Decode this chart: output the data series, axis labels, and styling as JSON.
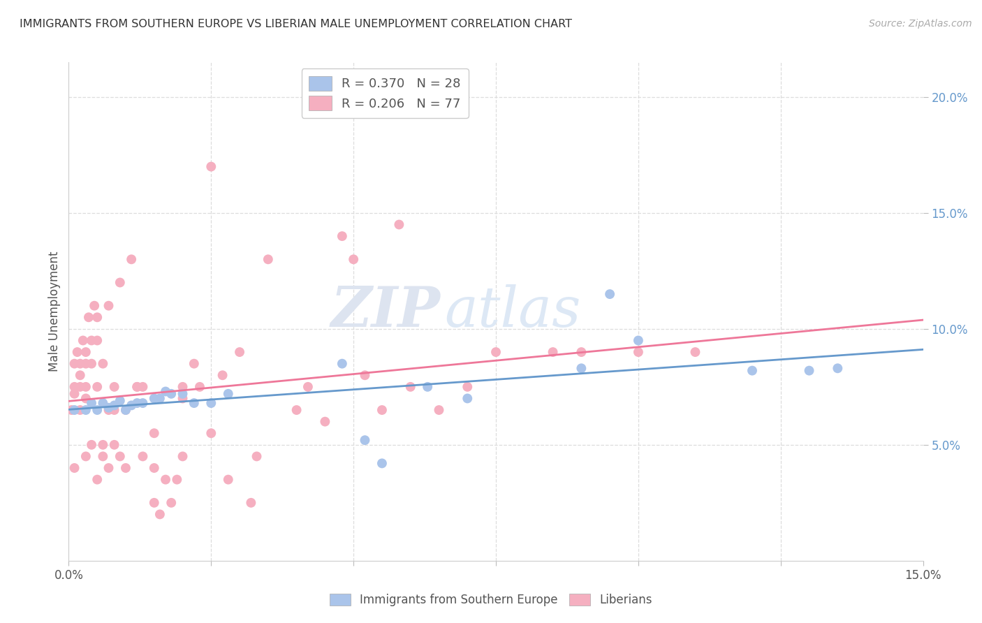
{
  "title": "IMMIGRANTS FROM SOUTHERN EUROPE VS LIBERIAN MALE UNEMPLOYMENT CORRELATION CHART",
  "source": "Source: ZipAtlas.com",
  "ylabel": "Male Unemployment",
  "xlim": [
    0.0,
    0.15
  ],
  "ylim": [
    0.0,
    0.215
  ],
  "yticks": [
    0.05,
    0.1,
    0.15,
    0.2
  ],
  "ytick_labels": [
    "5.0%",
    "10.0%",
    "15.0%",
    "20.0%"
  ],
  "blue_color": "#aac4ea",
  "pink_color": "#f5afc0",
  "blue_line_color": "#6699cc",
  "pink_line_color": "#ee7799",
  "legend_label_blue": "Immigrants from Southern Europe",
  "legend_label_pink": "Liberians",
  "watermark_zip": "ZIP",
  "watermark_atlas": "atlas",
  "blue_scatter_x": [
    0.001,
    0.003,
    0.004,
    0.005,
    0.006,
    0.007,
    0.008,
    0.009,
    0.01,
    0.011,
    0.012,
    0.013,
    0.015,
    0.016,
    0.017,
    0.018,
    0.02,
    0.022,
    0.025,
    0.028,
    0.048,
    0.052,
    0.055,
    0.063,
    0.07,
    0.09,
    0.095,
    0.1,
    0.12,
    0.13,
    0.135
  ],
  "blue_scatter_y": [
    0.065,
    0.065,
    0.068,
    0.065,
    0.068,
    0.066,
    0.067,
    0.069,
    0.065,
    0.067,
    0.068,
    0.068,
    0.07,
    0.07,
    0.073,
    0.072,
    0.072,
    0.068,
    0.068,
    0.072,
    0.085,
    0.052,
    0.042,
    0.075,
    0.07,
    0.083,
    0.115,
    0.095,
    0.082,
    0.082,
    0.083
  ],
  "pink_scatter_x": [
    0.0005,
    0.001,
    0.001,
    0.001,
    0.001,
    0.0015,
    0.002,
    0.002,
    0.002,
    0.002,
    0.0025,
    0.003,
    0.003,
    0.003,
    0.003,
    0.003,
    0.0035,
    0.004,
    0.004,
    0.004,
    0.0045,
    0.005,
    0.005,
    0.005,
    0.005,
    0.006,
    0.006,
    0.006,
    0.007,
    0.007,
    0.007,
    0.008,
    0.008,
    0.008,
    0.009,
    0.009,
    0.01,
    0.01,
    0.011,
    0.012,
    0.012,
    0.013,
    0.013,
    0.015,
    0.015,
    0.015,
    0.016,
    0.017,
    0.018,
    0.019,
    0.02,
    0.02,
    0.02,
    0.022,
    0.023,
    0.025,
    0.025,
    0.027,
    0.028,
    0.03,
    0.032,
    0.033,
    0.035,
    0.04,
    0.042,
    0.045,
    0.048,
    0.05,
    0.052,
    0.055,
    0.058,
    0.06,
    0.065,
    0.07,
    0.075,
    0.085,
    0.09,
    0.1,
    0.11
  ],
  "pink_scatter_y": [
    0.065,
    0.085,
    0.075,
    0.072,
    0.04,
    0.09,
    0.085,
    0.08,
    0.075,
    0.065,
    0.095,
    0.09,
    0.085,
    0.075,
    0.07,
    0.045,
    0.105,
    0.095,
    0.085,
    0.05,
    0.11,
    0.105,
    0.095,
    0.035,
    0.075,
    0.05,
    0.045,
    0.085,
    0.065,
    0.04,
    0.11,
    0.075,
    0.05,
    0.065,
    0.045,
    0.12,
    0.04,
    0.065,
    0.13,
    0.075,
    0.075,
    0.045,
    0.075,
    0.055,
    0.025,
    0.04,
    0.02,
    0.035,
    0.025,
    0.035,
    0.075,
    0.045,
    0.07,
    0.085,
    0.075,
    0.055,
    0.17,
    0.08,
    0.035,
    0.09,
    0.025,
    0.045,
    0.13,
    0.065,
    0.075,
    0.06,
    0.14,
    0.13,
    0.08,
    0.065,
    0.145,
    0.075,
    0.065,
    0.075,
    0.09,
    0.09,
    0.09,
    0.09,
    0.09
  ]
}
